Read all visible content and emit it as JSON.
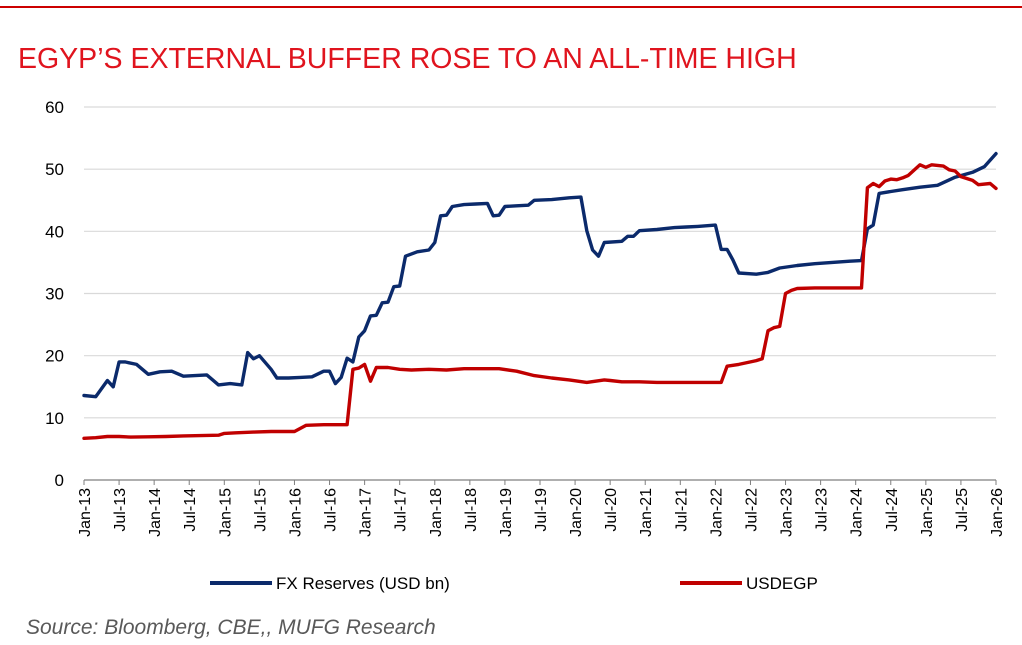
{
  "title": "EGYP’S EXTERNAL BUFFER ROSE TO AN ALL-TIME HIGH",
  "source": "Source: Bloomberg, CBE,, MUFG Research",
  "colors": {
    "title": "#e0141e",
    "fx_reserves": "#0b2a6b",
    "usdegp": "#c00000",
    "grid": "#d9d9d9"
  },
  "chart_data": {
    "type": "line",
    "title": "EGYP’S EXTERNAL BUFFER ROSE TO AN ALL-TIME HIGH",
    "xlabel": "",
    "ylabel": "",
    "ylim": [
      0,
      60
    ],
    "yticks": [
      0,
      10,
      20,
      30,
      40,
      50,
      60
    ],
    "x_range": [
      "2013-01",
      "2026-01"
    ],
    "grid": true,
    "legend_position": "bottom",
    "xtick_labels": [
      "Jan-13",
      "Jul-13",
      "Jan-14",
      "Jul-14",
      "Jan-15",
      "Jul-15",
      "Jan-16",
      "Jul-16",
      "Jan-17",
      "Jul-17",
      "Jan-18",
      "Jul-18",
      "Jan-19",
      "Jul-19",
      "Jan-20",
      "Jul-20",
      "Jan-21",
      "Jul-21",
      "Jan-22",
      "Jul-22",
      "Jan-23",
      "Jul-23",
      "Jan-24",
      "Jul-24",
      "Jan-25",
      "Jul-25",
      "Jan-26"
    ],
    "series": [
      {
        "name": "FX Reserves (USD bn)",
        "color": "#0b2a6b",
        "points": [
          [
            "2013-01",
            13.6
          ],
          [
            "2013-03",
            13.4
          ],
          [
            "2013-05",
            16.0
          ],
          [
            "2013-06",
            15.0
          ],
          [
            "2013-07",
            19.0
          ],
          [
            "2013-08",
            19.0
          ],
          [
            "2013-10",
            18.6
          ],
          [
            "2013-12",
            17.0
          ],
          [
            "2014-02",
            17.4
          ],
          [
            "2014-04",
            17.5
          ],
          [
            "2014-06",
            16.7
          ],
          [
            "2014-08",
            16.8
          ],
          [
            "2014-10",
            16.9
          ],
          [
            "2014-12",
            15.3
          ],
          [
            "2015-02",
            15.5
          ],
          [
            "2015-04",
            15.3
          ],
          [
            "2015-05",
            20.5
          ],
          [
            "2015-06",
            19.5
          ],
          [
            "2015-07",
            20.0
          ],
          [
            "2015-09",
            17.8
          ],
          [
            "2015-10",
            16.4
          ],
          [
            "2015-12",
            16.4
          ],
          [
            "2016-02",
            16.5
          ],
          [
            "2016-04",
            16.6
          ],
          [
            "2016-06",
            17.5
          ],
          [
            "2016-07",
            17.5
          ],
          [
            "2016-08",
            15.5
          ],
          [
            "2016-09",
            16.5
          ],
          [
            "2016-10",
            19.6
          ],
          [
            "2016-11",
            19.0
          ],
          [
            "2016-12",
            23.0
          ],
          [
            "2017-01",
            24.0
          ],
          [
            "2017-02",
            26.4
          ],
          [
            "2017-03",
            26.5
          ],
          [
            "2017-04",
            28.5
          ],
          [
            "2017-05",
            28.6
          ],
          [
            "2017-06",
            31.1
          ],
          [
            "2017-07",
            31.2
          ],
          [
            "2017-08",
            36.0
          ],
          [
            "2017-10",
            36.7
          ],
          [
            "2017-12",
            37.0
          ],
          [
            "2018-01",
            38.2
          ],
          [
            "2018-02",
            42.5
          ],
          [
            "2018-03",
            42.6
          ],
          [
            "2018-04",
            44.0
          ],
          [
            "2018-06",
            44.3
          ],
          [
            "2018-08",
            44.4
          ],
          [
            "2018-10",
            44.5
          ],
          [
            "2018-11",
            42.5
          ],
          [
            "2018-12",
            42.6
          ],
          [
            "2019-01",
            44.0
          ],
          [
            "2019-03",
            44.1
          ],
          [
            "2019-05",
            44.2
          ],
          [
            "2019-06",
            45.0
          ],
          [
            "2019-09",
            45.1
          ],
          [
            "2019-12",
            45.4
          ],
          [
            "2020-02",
            45.5
          ],
          [
            "2020-03",
            40.1
          ],
          [
            "2020-04",
            37.0
          ],
          [
            "2020-05",
            36.0
          ],
          [
            "2020-06",
            38.2
          ],
          [
            "2020-09",
            38.4
          ],
          [
            "2020-10",
            39.2
          ],
          [
            "2020-11",
            39.2
          ],
          [
            "2020-12",
            40.1
          ],
          [
            "2021-03",
            40.3
          ],
          [
            "2021-06",
            40.6
          ],
          [
            "2021-08",
            40.7
          ],
          [
            "2021-10",
            40.8
          ],
          [
            "2022-01",
            41.0
          ],
          [
            "2022-02",
            37.1
          ],
          [
            "2022-03",
            37.1
          ],
          [
            "2022-04",
            35.4
          ],
          [
            "2022-05",
            33.3
          ],
          [
            "2022-08",
            33.1
          ],
          [
            "2022-10",
            33.4
          ],
          [
            "2022-12",
            34.1
          ],
          [
            "2023-03",
            34.5
          ],
          [
            "2023-06",
            34.8
          ],
          [
            "2023-09",
            35.0
          ],
          [
            "2023-12",
            35.2
          ],
          [
            "2024-02",
            35.3
          ],
          [
            "2024-03",
            40.4
          ],
          [
            "2024-04",
            41.0
          ],
          [
            "2024-05",
            46.1
          ],
          [
            "2024-07",
            46.4
          ],
          [
            "2024-09",
            46.7
          ],
          [
            "2024-12",
            47.1
          ],
          [
            "2025-03",
            47.4
          ],
          [
            "2025-06",
            48.7
          ],
          [
            "2025-09",
            49.5
          ],
          [
            "2025-11",
            50.4
          ],
          [
            "2026-01",
            52.5
          ]
        ]
      },
      {
        "name": "USDEGP",
        "color": "#c00000",
        "points": [
          [
            "2013-01",
            6.7
          ],
          [
            "2013-03",
            6.8
          ],
          [
            "2013-05",
            7.0
          ],
          [
            "2013-07",
            7.0
          ],
          [
            "2013-09",
            6.9
          ],
          [
            "2013-12",
            6.95
          ],
          [
            "2014-03",
            7.0
          ],
          [
            "2014-06",
            7.1
          ],
          [
            "2014-09",
            7.15
          ],
          [
            "2014-12",
            7.2
          ],
          [
            "2015-01",
            7.5
          ],
          [
            "2015-03",
            7.6
          ],
          [
            "2015-06",
            7.7
          ],
          [
            "2015-09",
            7.8
          ],
          [
            "2015-12",
            7.8
          ],
          [
            "2016-01",
            7.8
          ],
          [
            "2016-03",
            8.8
          ],
          [
            "2016-06",
            8.9
          ],
          [
            "2016-09",
            8.9
          ],
          [
            "2016-10",
            8.9
          ],
          [
            "2016-11",
            17.8
          ],
          [
            "2016-12",
            18.0
          ],
          [
            "2017-01",
            18.6
          ],
          [
            "2017-02",
            15.9
          ],
          [
            "2017-03",
            18.1
          ],
          [
            "2017-05",
            18.1
          ],
          [
            "2017-07",
            17.8
          ],
          [
            "2017-09",
            17.7
          ],
          [
            "2017-12",
            17.8
          ],
          [
            "2018-03",
            17.7
          ],
          [
            "2018-06",
            17.9
          ],
          [
            "2018-09",
            17.9
          ],
          [
            "2018-12",
            17.9
          ],
          [
            "2019-03",
            17.5
          ],
          [
            "2019-06",
            16.8
          ],
          [
            "2019-09",
            16.4
          ],
          [
            "2019-12",
            16.1
          ],
          [
            "2020-03",
            15.7
          ],
          [
            "2020-06",
            16.1
          ],
          [
            "2020-07",
            16.0
          ],
          [
            "2020-09",
            15.8
          ],
          [
            "2020-12",
            15.8
          ],
          [
            "2021-03",
            15.7
          ],
          [
            "2021-06",
            15.7
          ],
          [
            "2021-09",
            15.7
          ],
          [
            "2021-12",
            15.7
          ],
          [
            "2022-01",
            15.7
          ],
          [
            "2022-02",
            15.7
          ],
          [
            "2022-03",
            18.3
          ],
          [
            "2022-05",
            18.6
          ],
          [
            "2022-07",
            19.0
          ],
          [
            "2022-08",
            19.2
          ],
          [
            "2022-09",
            19.5
          ],
          [
            "2022-10",
            24.0
          ],
          [
            "2022-11",
            24.5
          ],
          [
            "2022-12",
            24.7
          ],
          [
            "2023-01",
            30.0
          ],
          [
            "2023-02",
            30.5
          ],
          [
            "2023-03",
            30.8
          ],
          [
            "2023-06",
            30.9
          ],
          [
            "2023-09",
            30.9
          ],
          [
            "2023-12",
            30.9
          ],
          [
            "2024-02",
            30.9
          ],
          [
            "2024-03",
            47.0
          ],
          [
            "2024-04",
            47.7
          ],
          [
            "2024-05",
            47.2
          ],
          [
            "2024-06",
            48.1
          ],
          [
            "2024-07",
            48.4
          ],
          [
            "2024-08",
            48.3
          ],
          [
            "2024-09",
            48.6
          ],
          [
            "2024-10",
            49.0
          ],
          [
            "2024-12",
            50.7
          ],
          [
            "2025-01",
            50.3
          ],
          [
            "2025-02",
            50.7
          ],
          [
            "2025-04",
            50.5
          ],
          [
            "2025-05",
            49.9
          ],
          [
            "2025-06",
            49.7
          ],
          [
            "2025-07",
            48.8
          ],
          [
            "2025-09",
            48.2
          ],
          [
            "2025-10",
            47.5
          ],
          [
            "2025-12",
            47.7
          ],
          [
            "2026-01",
            46.9
          ]
        ]
      }
    ]
  }
}
